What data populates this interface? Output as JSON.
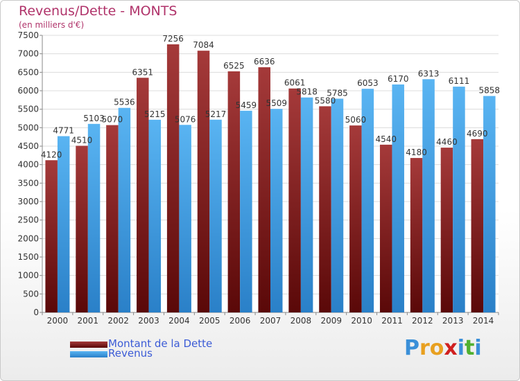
{
  "title": "Revenus/Dette - MONTS",
  "subtitle": "(en milliers d'€)",
  "logo": {
    "text": "Proxiti",
    "letter_colors": [
      "#3a8fd8",
      "#e8a020",
      "#e8a020",
      "#d02020",
      "#3a8fd8",
      "#50b030",
      "#3a8fd8"
    ]
  },
  "legend": [
    {
      "label": "Montant de la Dette",
      "color": "#7a1c1c"
    },
    {
      "label": "Revenus",
      "color": "#3d9ee6"
    }
  ],
  "chart_data": {
    "type": "bar",
    "title": "Revenus/Dette - MONTS",
    "subtitle": "(en milliers d'€)",
    "xlabel": "",
    "ylabel": "",
    "ylim": [
      0,
      7500
    ],
    "ytick_step": 500,
    "grid": true,
    "legend_position": "bottom-left",
    "categories": [
      "2000",
      "2001",
      "2002",
      "2003",
      "2004",
      "2005",
      "2006",
      "2007",
      "2008",
      "2009",
      "2010",
      "2011",
      "2012",
      "2013",
      "2014"
    ],
    "series": [
      {
        "name": "Montant de la Dette",
        "color": "#7a1c1c",
        "values": [
          4120,
          4510,
          5070,
          6351,
          7256,
          7084,
          6525,
          6636,
          6061,
          5580,
          5060,
          4540,
          4180,
          4460,
          4690
        ],
        "labels": [
          "4120",
          "4510",
          "5070",
          "6351",
          "7256",
          "7084",
          "6525",
          "6636",
          "6061",
          "5580",
          "5060",
          "4540",
          "4180",
          "4460",
          "4690"
        ]
      },
      {
        "name": "Revenus",
        "color": "#3d9ee6",
        "values": [
          4771,
          5103,
          5536,
          5215,
          5076,
          5217,
          5459,
          5509,
          5818,
          5785,
          6053,
          6170,
          6313,
          6111,
          5858
        ],
        "labels": [
          "4771",
          "5103",
          "5536",
          "5215",
          "5076",
          "5217",
          "5459",
          "5509",
          "5818",
          "5785",
          "6053",
          "6170",
          "6313",
          "6111",
          "5858"
        ]
      }
    ]
  }
}
